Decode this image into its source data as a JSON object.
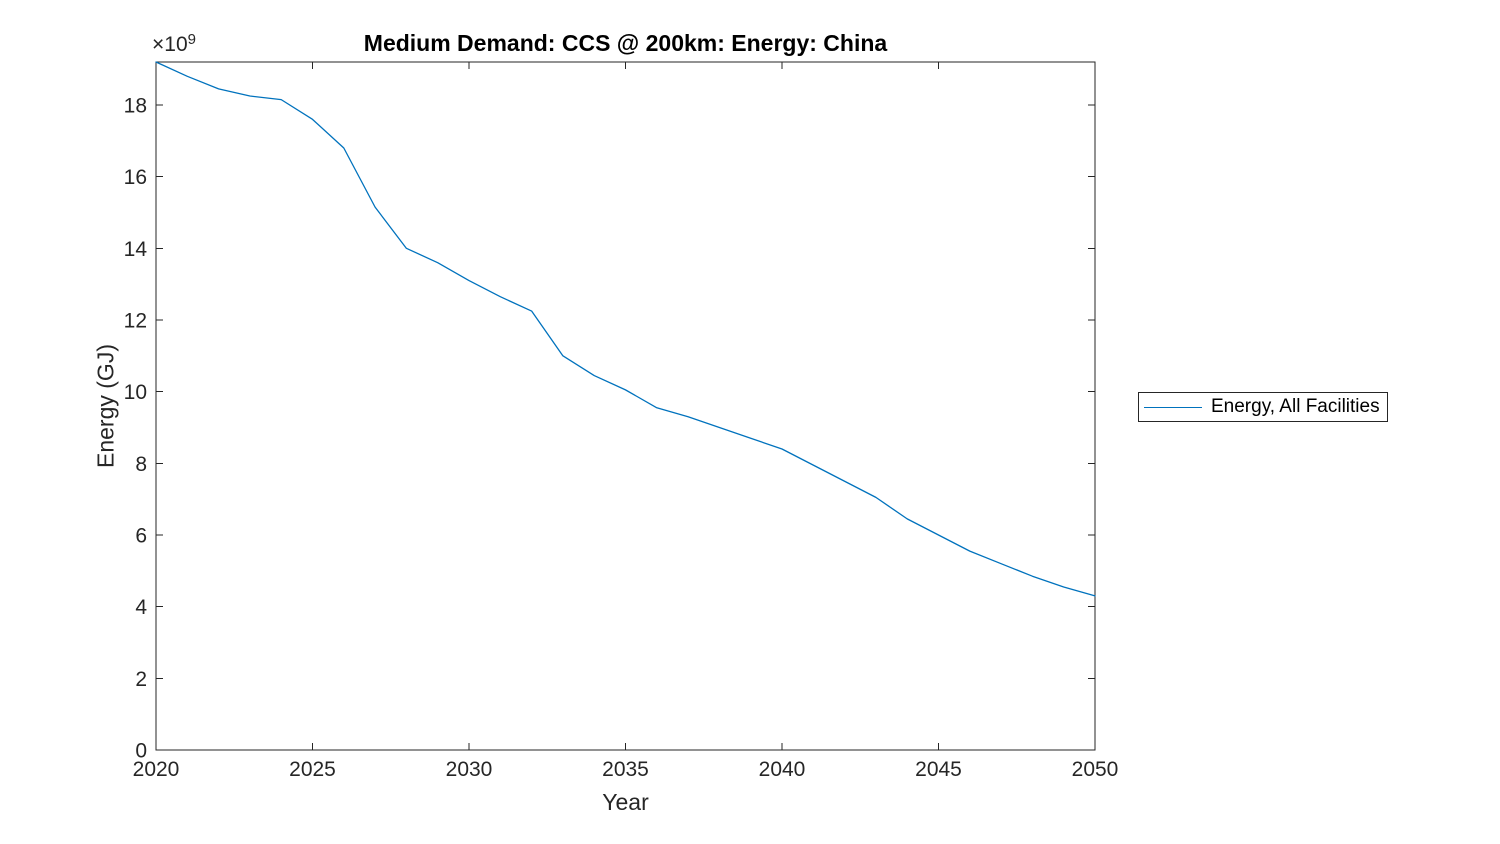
{
  "chart_data": {
    "type": "line",
    "title": "Medium Demand: CCS @ 200km: Energy: China",
    "xlabel": "Year",
    "ylabel": "Energy (GJ)",
    "y_axis_offset": {
      "text": "×10",
      "exponent": "9"
    },
    "units": "GJ",
    "value_multiplier": 1000000000,
    "xlim": [
      2020,
      2050
    ],
    "ylim_e9": [
      0,
      19.2
    ],
    "xticks": [
      2020,
      2025,
      2030,
      2035,
      2040,
      2045,
      2050
    ],
    "yticks_e9": [
      0,
      2,
      4,
      6,
      8,
      10,
      12,
      14,
      16,
      18
    ],
    "grid": false,
    "legend_position": "right-outside",
    "axis_color": "#262626",
    "background_color": "#ffffff",
    "series": [
      {
        "name": "Energy, All Facilities",
        "color": "#0072BD",
        "x": [
          2020,
          2021,
          2022,
          2023,
          2024,
          2025,
          2026,
          2027,
          2028,
          2029,
          2030,
          2031,
          2032,
          2033,
          2034,
          2035,
          2036,
          2037,
          2038,
          2039,
          2040,
          2041,
          2042,
          2043,
          2044,
          2045,
          2046,
          2047,
          2048,
          2049,
          2050
        ],
        "values_e9": [
          19.2,
          18.8,
          18.45,
          18.25,
          18.15,
          17.6,
          16.8,
          15.15,
          14.0,
          13.6,
          13.1,
          12.65,
          12.25,
          11.0,
          10.45,
          10.05,
          9.55,
          9.3,
          9.0,
          8.7,
          8.4,
          7.95,
          7.5,
          7.05,
          6.45,
          6.0,
          5.55,
          5.2,
          4.85,
          4.55,
          4.3
        ]
      }
    ]
  }
}
